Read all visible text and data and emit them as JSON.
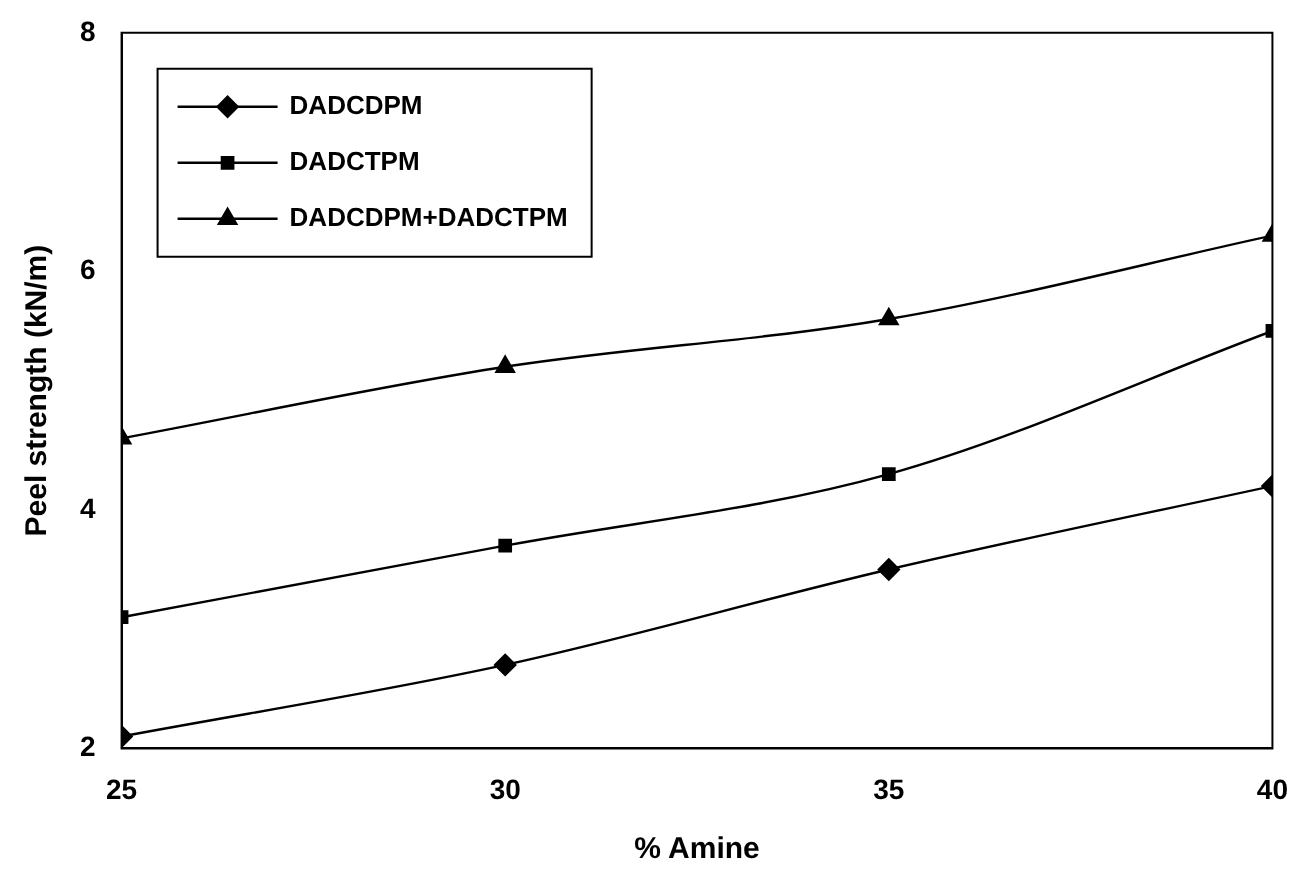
{
  "chart_data": {
    "type": "line",
    "xlabel": "% Amine",
    "ylabel": "Peel strength (kN/m)",
    "x": [
      25,
      30,
      35,
      40
    ],
    "xlim": [
      25,
      40
    ],
    "xticks": [
      25,
      30,
      35,
      40
    ],
    "ylim": [
      2,
      8
    ],
    "yticks": [
      2,
      4,
      6,
      8
    ],
    "grid": false,
    "legend": "top left",
    "series": [
      {
        "name": "DADCDPM",
        "color": "#000000",
        "marker": "diamond",
        "values": [
          2.1,
          2.7,
          3.5,
          4.2
        ]
      },
      {
        "name": "DADCTPM",
        "color": "#000000",
        "marker": "square",
        "values": [
          3.1,
          3.7,
          4.3,
          5.5
        ]
      },
      {
        "name": "DADCDPM+DADCTPM",
        "color": "#000000",
        "marker": "triangle",
        "values": [
          4.6,
          5.2,
          5.6,
          6.3
        ]
      }
    ]
  }
}
